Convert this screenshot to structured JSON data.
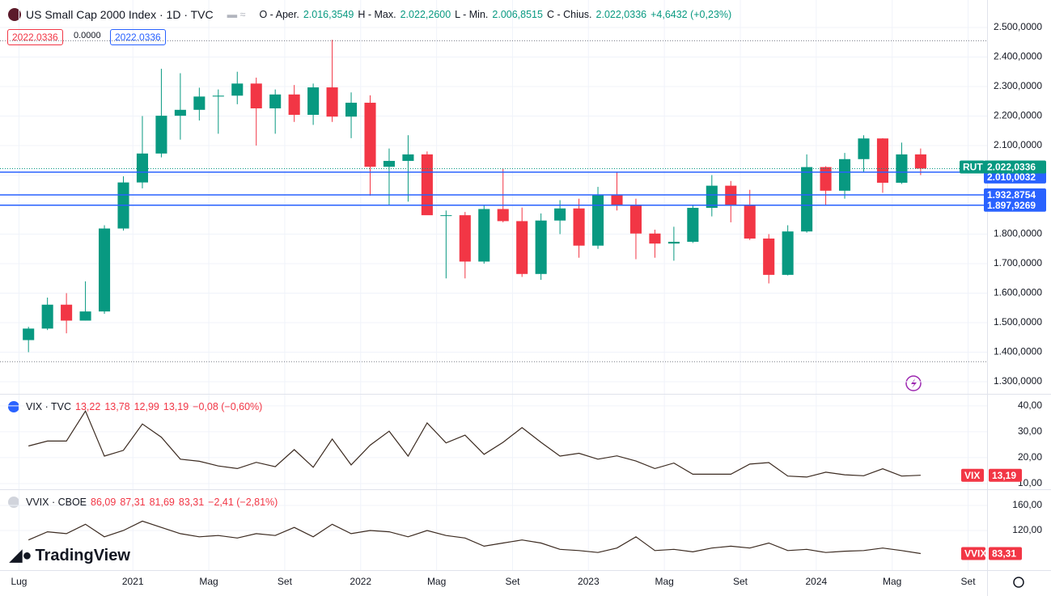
{
  "header": {
    "title": "US Small Cap 2000 Index · 1D · TVC",
    "open_label": "O - Aper.",
    "open": "2.016,3549",
    "high_label": "H - Max.",
    "high": "2.022,2600",
    "low_label": "L - Min.",
    "low": "2.006,8515",
    "close_label": "C - Chius.",
    "close": "2.022,0336",
    "change": "+4,6432 (+0,23%)",
    "badges": [
      "2022.0336",
      "0.0000",
      "2022.0336"
    ]
  },
  "logo": "TradingView",
  "chart_data": [
    {
      "type": "candlestick",
      "x": [
        "2020-07",
        "2020-08",
        "2020-09",
        "2020-10",
        "2020-11",
        "2020-12",
        "2021-01",
        "2021-02",
        "2021-03",
        "2021-04",
        "2021-05",
        "2021-06",
        "2021-07",
        "2021-08",
        "2021-09",
        "2021-10",
        "2021-11",
        "2021-12",
        "2022-01",
        "2022-02",
        "2022-03",
        "2022-04",
        "2022-05",
        "2022-06",
        "2022-07",
        "2022-08",
        "2022-09",
        "2022-10",
        "2022-11",
        "2022-12",
        "2023-01",
        "2023-02",
        "2023-03",
        "2023-04",
        "2023-05",
        "2023-06",
        "2023-07",
        "2023-08",
        "2023-09",
        "2023-10",
        "2023-11",
        "2023-12",
        "2024-01",
        "2024-02",
        "2024-03",
        "2024-04",
        "2024-05",
        "2024-06"
      ],
      "open": [
        1441,
        1480,
        1561,
        1507,
        1538,
        1819,
        1975,
        2073,
        2201,
        2221,
        2266,
        2269,
        2310,
        2226,
        2273,
        2204,
        2297,
        2198,
        2245,
        2028,
        2048,
        2070,
        1864,
        1864,
        1707,
        1885,
        1844,
        1665,
        1846,
        1887,
        1761,
        1932,
        1897,
        1802,
        1768,
        1774,
        1889,
        1964,
        1900,
        1785,
        1662,
        1809,
        2027,
        1947,
        2054,
        2124,
        1974,
        2070
      ],
      "high": [
        1486,
        1585,
        1600,
        1640,
        1830,
        1996,
        2200,
        2360,
        2345,
        2296,
        2290,
        2350,
        2330,
        2290,
        2305,
        2310,
        2458,
        2280,
        2270,
        2090,
        2135,
        2080,
        1880,
        1875,
        1900,
        2022,
        1890,
        1870,
        1915,
        1920,
        1960,
        2010,
        1920,
        1815,
        1825,
        1900,
        2000,
        1980,
        1950,
        1800,
        1830,
        2070,
        2030,
        2075,
        2135,
        2125,
        2110,
        2090
      ],
      "low": [
        1400,
        1475,
        1464,
        1507,
        1530,
        1812,
        1955,
        2060,
        2120,
        2185,
        2140,
        2240,
        2100,
        2140,
        2180,
        2170,
        2180,
        2125,
        1930,
        1900,
        1910,
        1865,
        1650,
        1650,
        1700,
        1840,
        1655,
        1645,
        1800,
        1720,
        1750,
        1880,
        1715,
        1720,
        1710,
        1770,
        1860,
        1840,
        1780,
        1633,
        1660,
        1805,
        1900,
        1920,
        2010,
        1940,
        1970,
        2000
      ],
      "close": [
        1480,
        1561,
        1507,
        1538,
        1819,
        1975,
        2073,
        2201,
        2221,
        2266,
        2269,
        2310,
        2226,
        2273,
        2204,
        2297,
        2198,
        2245,
        2028,
        2048,
        2070,
        1864,
        1864,
        1707,
        1885,
        1844,
        1665,
        1846,
        1887,
        1761,
        1932,
        1897,
        1802,
        1768,
        1774,
        1889,
        1964,
        1900,
        1785,
        1662,
        1809,
        2027,
        1947,
        2054,
        2124,
        1974,
        2070,
        2022.0336
      ],
      "up_color": "#089981",
      "down_color": "#f23645",
      "xlim": [
        "2020-06",
        "2024-10"
      ],
      "xticks": [
        {
          "value": "2020-07",
          "label": "Lug"
        },
        {
          "value": "2021-01",
          "label": "2021"
        },
        {
          "value": "2021-05",
          "label": "Mag"
        },
        {
          "value": "2021-09",
          "label": "Set"
        },
        {
          "value": "2022-01",
          "label": "2022"
        },
        {
          "value": "2022-05",
          "label": "Mag"
        },
        {
          "value": "2022-09",
          "label": "Set"
        },
        {
          "value": "2023-01",
          "label": "2023"
        },
        {
          "value": "2023-05",
          "label": "Mag"
        },
        {
          "value": "2023-09",
          "label": "Set"
        },
        {
          "value": "2024-01",
          "label": "2024"
        },
        {
          "value": "2024-05",
          "label": "Mag"
        },
        {
          "value": "2024-09",
          "label": "Set"
        }
      ],
      "ylim": [
        1259,
        2593
      ],
      "yticks": [
        {
          "value": 1300,
          "label": "1.300,0000"
        },
        {
          "value": 1400,
          "label": "1.400,0000"
        },
        {
          "value": 1500,
          "label": "1.500,0000"
        },
        {
          "value": 1600,
          "label": "1.600,0000"
        },
        {
          "value": 1700,
          "label": "1.700,0000"
        },
        {
          "value": 1800,
          "label": "1.800,0000"
        },
        {
          "value": 1900,
          "label": "1.900,0000"
        },
        {
          "value": 2000,
          "label": "2.000,0000"
        },
        {
          "value": 2100,
          "label": "2.100,0000"
        },
        {
          "value": 2200,
          "label": "2.200,0000"
        },
        {
          "value": 2300,
          "label": "2.300,0000"
        },
        {
          "value": 2400,
          "label": "2.400,0000"
        },
        {
          "value": 2500,
          "label": "2.500,0000"
        }
      ],
      "grid": true,
      "hlines": [
        {
          "value": 2010.0032,
          "label": "2.010,0032"
        },
        {
          "value": 1932.8754,
          "label": "1.932,8754"
        },
        {
          "value": 1897.9269,
          "label": "1.897,9269"
        }
      ],
      "hline_color": "#2962ff",
      "dotted_levels": [
        2455,
        1368
      ],
      "last": {
        "name": "RUT",
        "value": 2022.0336,
        "label": "2.022,0336"
      }
    },
    {
      "type": "line",
      "title": "VIX · TVC",
      "ohlc_text": [
        "13,22",
        "13,78",
        "12,99",
        "13,19"
      ],
      "change": "−0,08 (−0,60%)",
      "x": [
        "2020-07",
        "2020-08",
        "2020-09",
        "2020-10",
        "2020-11",
        "2020-12",
        "2021-01",
        "2021-02",
        "2021-03",
        "2021-04",
        "2021-05",
        "2021-06",
        "2021-07",
        "2021-08",
        "2021-09",
        "2021-10",
        "2021-11",
        "2021-12",
        "2022-01",
        "2022-02",
        "2022-03",
        "2022-04",
        "2022-05",
        "2022-06",
        "2022-07",
        "2022-08",
        "2022-09",
        "2022-10",
        "2022-11",
        "2022-12",
        "2023-01",
        "2023-02",
        "2023-03",
        "2023-04",
        "2023-05",
        "2023-06",
        "2023-07",
        "2023-08",
        "2023-09",
        "2023-10",
        "2023-11",
        "2023-12",
        "2024-01",
        "2024-02",
        "2024-03",
        "2024-04",
        "2024-05",
        "2024-06"
      ],
      "values": [
        24.5,
        26.4,
        26.4,
        38,
        20.6,
        22.8,
        33,
        27.9,
        19.4,
        18.6,
        16.8,
        15.8,
        18.2,
        16.5,
        23.1,
        16.3,
        27.2,
        17.2,
        24.8,
        30.2,
        20.6,
        33.4,
        25.7,
        28.7,
        21.3,
        25.9,
        31.6,
        25.9,
        20.6,
        21.7,
        19.4,
        20.7,
        18.7,
        15.8,
        17.9,
        13.6,
        13.6,
        13.6,
        17.5,
        18.1,
        12.9,
        12.5,
        14.4,
        13.4,
        13.0,
        15.7,
        12.9,
        13.19
      ],
      "color": "#3b2a20",
      "ylim": [
        7.8,
        43.7
      ],
      "yticks": [
        {
          "value": 10,
          "label": "10,00"
        },
        {
          "value": 20,
          "label": "20,00"
        },
        {
          "value": 30,
          "label": "30,00"
        },
        {
          "value": 40,
          "label": "40,00"
        }
      ],
      "last": {
        "name": "VIX",
        "value": 13.19,
        "label": "13,19"
      },
      "last_color": "#f23645"
    },
    {
      "type": "line",
      "title": "VVIX · CBOE",
      "ohlc_text": [
        "86,09",
        "87,31",
        "81,69",
        "83,31"
      ],
      "change": "−2,41 (−2,81%)",
      "x": [
        "2020-07",
        "2020-08",
        "2020-09",
        "2020-10",
        "2020-11",
        "2020-12",
        "2021-01",
        "2021-02",
        "2021-03",
        "2021-04",
        "2021-05",
        "2021-06",
        "2021-07",
        "2021-08",
        "2021-09",
        "2021-10",
        "2021-11",
        "2021-12",
        "2022-01",
        "2022-02",
        "2022-03",
        "2022-04",
        "2022-05",
        "2022-06",
        "2022-07",
        "2022-08",
        "2022-09",
        "2022-10",
        "2022-11",
        "2022-12",
        "2023-01",
        "2023-02",
        "2023-03",
        "2023-04",
        "2023-05",
        "2023-06",
        "2023-07",
        "2023-08",
        "2023-09",
        "2023-10",
        "2023-11",
        "2023-12",
        "2024-01",
        "2024-02",
        "2024-03",
        "2024-04",
        "2024-05",
        "2024-06"
      ],
      "values": [
        105,
        118,
        115,
        130,
        110,
        120,
        135,
        125,
        115,
        110,
        112,
        108,
        115,
        112,
        125,
        110,
        130,
        115,
        120,
        118,
        110,
        120,
        112,
        108,
        95,
        100,
        105,
        100,
        90,
        88,
        85,
        92,
        110,
        88,
        90,
        86,
        92,
        95,
        92,
        100,
        88,
        90,
        85,
        87,
        88,
        92,
        88,
        83.31
      ],
      "color": "#3b2a20",
      "ylim": [
        56.8,
        182
      ],
      "yticks": [
        {
          "value": 120,
          "label": "120,00"
        },
        {
          "value": 160,
          "label": "160,00"
        }
      ],
      "last": {
        "name": "VVIX",
        "value": 83.31,
        "label": "83,31"
      },
      "last_color": "#f23645"
    }
  ]
}
